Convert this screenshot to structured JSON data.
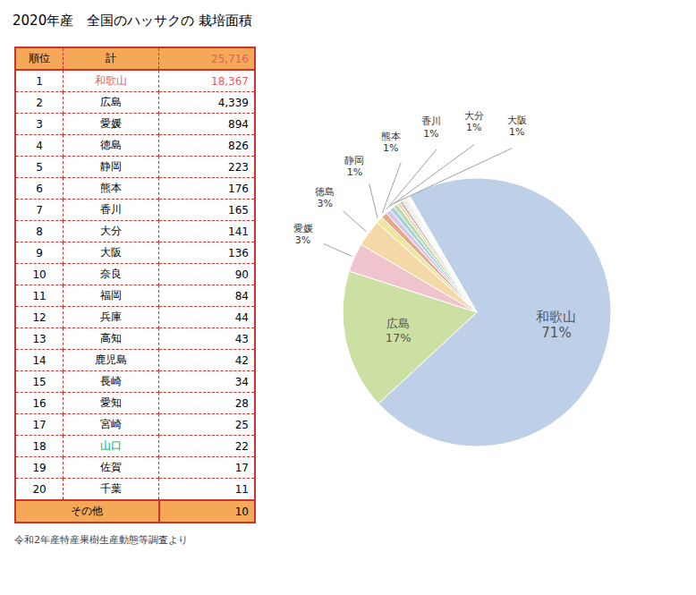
{
  "chart_data": {
    "type": "pie",
    "title": "2020年産　全国のハッサクの 栽培面積",
    "categories": [
      "和歌山",
      "広島",
      "愛媛",
      "徳島",
      "静岡",
      "熊本",
      "香川",
      "大分",
      "大阪",
      "奈良",
      "福岡",
      "兵庫",
      "高知",
      "鹿児島",
      "長崎",
      "愛知",
      "宮崎",
      "山口",
      "佐賀",
      "千葉",
      "その他"
    ],
    "values": [
      18367,
      4339,
      894,
      826,
      223,
      176,
      165,
      141,
      136,
      90,
      84,
      44,
      43,
      42,
      34,
      28,
      25,
      22,
      17,
      11,
      10
    ],
    "value_labels": [
      "18,367",
      "4,339",
      "894",
      "826",
      "223",
      "176",
      "165",
      "141",
      "136",
      "90",
      "84",
      "44",
      "43",
      "42",
      "34",
      "28",
      "25",
      "22",
      "17",
      "11",
      "10"
    ],
    "percents": [
      71,
      17,
      3,
      3,
      1,
      1,
      1,
      1,
      1,
      null,
      null,
      null,
      null,
      null,
      null,
      null,
      null,
      null,
      null,
      null,
      null
    ],
    "percent_labels": [
      "71%",
      "17%",
      "3%",
      "3%",
      "1%",
      "1%",
      "1%",
      "1%",
      "1%",
      null,
      null,
      null,
      null,
      null,
      null,
      null,
      null,
      null,
      null,
      null,
      null
    ],
    "colors": [
      "#bdd0e8",
      "#cde0a4",
      "#f0c4cc",
      "#f5d8a8",
      "#ede8a0",
      "#e8a888",
      "#d8c8e8",
      "#a8d0d8",
      "#b8dab0",
      "#ecd4a8",
      "#d0b0c0",
      "#b0ccb0",
      "#d8deb0",
      "#e4c0b0",
      "#c0cce4",
      "#dcc0cc",
      "#ccdccc",
      "#ecd8c0",
      "#c0d4c0",
      "#dcceb0",
      "#c8c0d8"
    ],
    "ranks": [
      1,
      2,
      3,
      4,
      5,
      6,
      7,
      8,
      9,
      10,
      11,
      12,
      13,
      14,
      15,
      16,
      17,
      18,
      19,
      20,
      null
    ],
    "name_colors": [
      "#e06060",
      "#000000",
      "#000000",
      "#000000",
      "#000000",
      "#000000",
      "#000000",
      "#000000",
      "#000000",
      "#000000",
      "#000000",
      "#000000",
      "#000000",
      "#000000",
      "#000000",
      "#000000",
      "#000000",
      "#00aa44",
      "#000000",
      "#000000",
      "#000000"
    ],
    "value_colors": [
      "#e06060",
      "#000000",
      "#000000",
      "#000000",
      "#000000",
      "#000000",
      "#000000",
      "#000000",
      "#000000",
      "#000000",
      "#000000",
      "#000000",
      "#000000",
      "#000000",
      "#000000",
      "#000000",
      "#000000",
      "#000000",
      "#000000",
      "#000000",
      "#000000"
    ],
    "table_header": [
      "順位",
      "計"
    ],
    "total": 25716,
    "total_label": "25,716",
    "total_color": "#e06060",
    "header_color": "#f5a857",
    "border_color": "#cc3333",
    "annotations": [
      "令和2年産特産果樹生産動態等調査より"
    ]
  }
}
